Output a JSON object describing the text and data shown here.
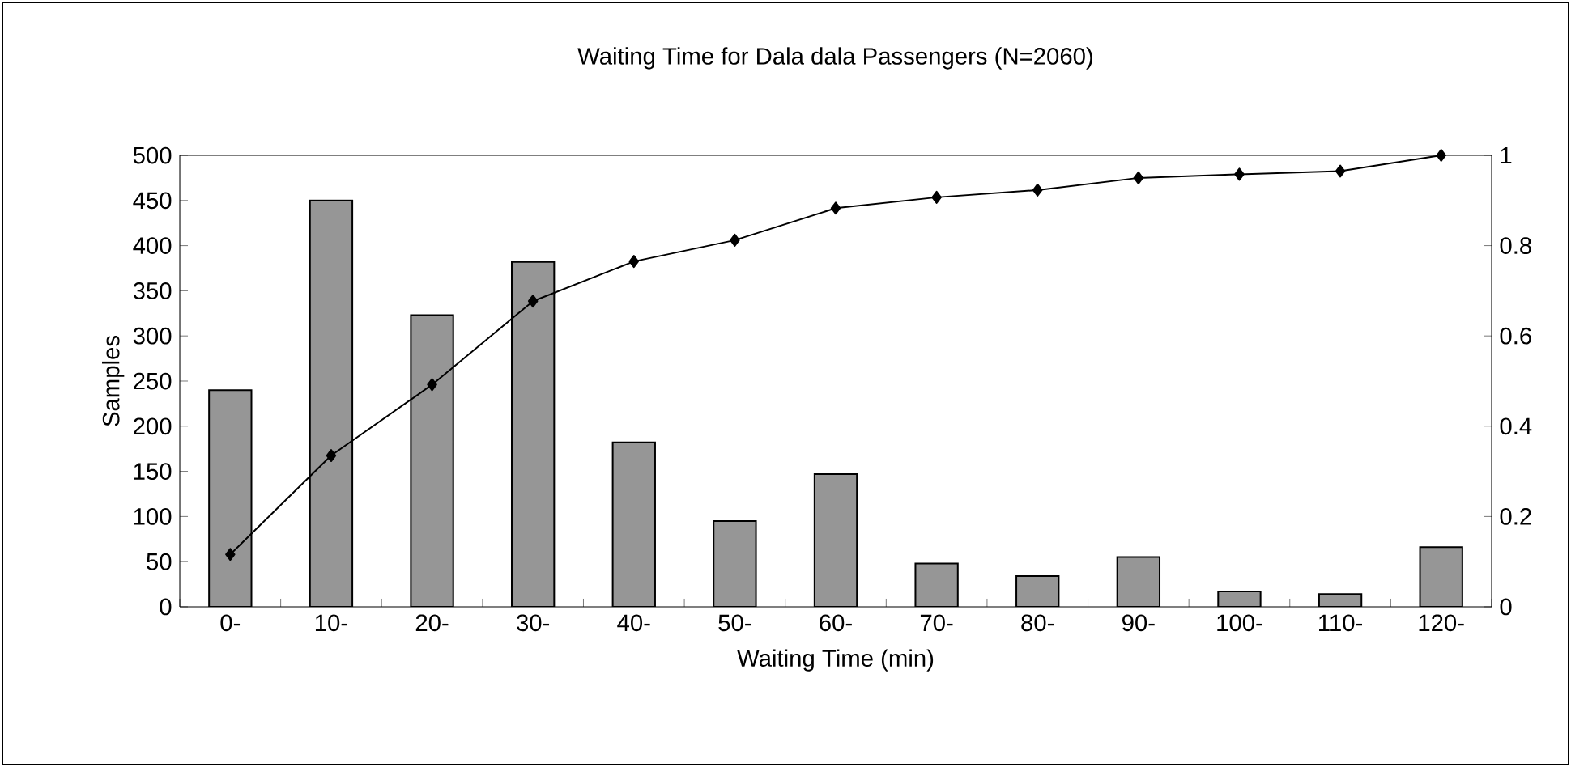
{
  "chart_data": {
    "type": "bar",
    "title": "Waiting Time for Dala dala Passengers (N=2060)",
    "xlabel": "Waiting Time (min)",
    "ylabel": "Samples",
    "categories": [
      "0-",
      "10-",
      "20-",
      "30-",
      "40-",
      "50-",
      "60-",
      "70-",
      "80-",
      "90-",
      "100-",
      "110-",
      "120-"
    ],
    "series": [
      {
        "color": "#969696",
        "values": [
          240,
          450,
          323,
          382,
          182,
          95,
          147,
          48,
          34,
          55,
          17,
          14,
          66
        ]
      },
      {
        "type": "line",
        "axis": "y2",
        "color": "#000000",
        "marker": "diamond",
        "values": [
          0.116,
          0.335,
          0.492,
          0.677,
          0.765,
          0.812,
          0.883,
          0.907,
          0.923,
          0.95,
          0.958,
          0.965,
          1.0
        ]
      }
    ],
    "ylim": [
      0,
      500
    ],
    "yticks": [
      0,
      50,
      100,
      150,
      200,
      250,
      300,
      350,
      400,
      450,
      500
    ],
    "y2lim": [
      0,
      1
    ],
    "y2ticks": [
      0,
      0.2,
      0.4,
      0.6,
      0.8,
      1
    ]
  }
}
